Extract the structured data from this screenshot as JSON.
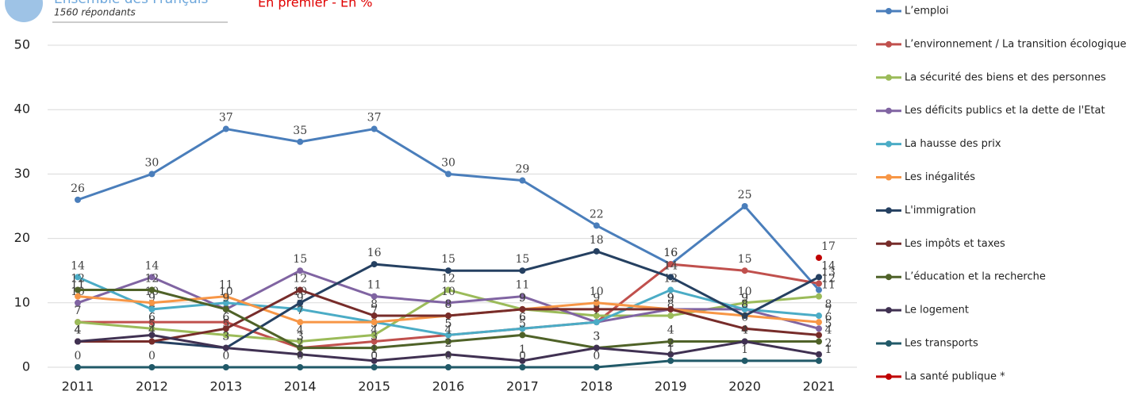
{
  "chart_data": {
    "type": "line",
    "title": "Ensemble des Français",
    "subtitle": "1560 répondants",
    "note": "En premier - En %",
    "categories": [
      "2011",
      "2012",
      "2013",
      "2014",
      "2015",
      "2016",
      "2017",
      "2018",
      "2019",
      "2020",
      "2021"
    ],
    "ylim": [
      0,
      50
    ],
    "yticks": [
      0,
      10,
      20,
      30,
      40,
      50
    ],
    "grid": true,
    "series": [
      {
        "name": "L’emploi",
        "color": "#4a7ebb",
        "values": [
          26,
          30,
          37,
          35,
          37,
          30,
          29,
          22,
          16,
          25,
          12
        ]
      },
      {
        "name": "L’environnement / La transition écologique",
        "color": "#c0504d",
        "values": [
          7,
          7,
          7,
          3,
          4,
          5,
          6,
          7,
          16,
          15,
          13
        ]
      },
      {
        "name": "La sécurité des biens et des personnes",
        "color": "#9bbb59",
        "values": [
          7,
          6,
          5,
          4,
          5,
          12,
          9,
          8,
          8,
          10,
          11
        ]
      },
      {
        "name": "Les déficits publics et la dette de l'Etat",
        "color": "#8064a2",
        "values": [
          10,
          14,
          9,
          15,
          11,
          10,
          11,
          7,
          9,
          9,
          6
        ]
      },
      {
        "name": "La hausse des prix",
        "color": "#4bacc6",
        "values": [
          14,
          9,
          10,
          9,
          7,
          5,
          6,
          7,
          12,
          9,
          8
        ]
      },
      {
        "name": "Les inégalités",
        "color": "#f79646",
        "values": [
          11,
          10,
          11,
          7,
          7,
          8,
          9,
          10,
          9,
          8,
          7
        ]
      },
      {
        "name": "L'immigration",
        "color": "#254061",
        "values": [
          4,
          4,
          3,
          10,
          16,
          15,
          15,
          18,
          14,
          8,
          14
        ]
      },
      {
        "name": "Les impôts et taxes",
        "color": "#772c2a",
        "values": [
          4,
          4,
          6,
          12,
          8,
          8,
          9,
          9,
          9,
          6,
          5
        ]
      },
      {
        "name": "L’éducation et la recherche",
        "color": "#4f6228",
        "values": [
          12,
          12,
          9,
          3,
          3,
          4,
          5,
          3,
          4,
          4,
          4
        ]
      },
      {
        "name": "Le logement",
        "color": "#403152",
        "values": [
          4,
          5,
          3,
          2,
          1,
          2,
          1,
          3,
          2,
          4,
          2
        ]
      },
      {
        "name": "Les transports",
        "color": "#215968",
        "values": [
          0,
          0,
          0,
          0,
          0,
          0,
          0,
          0,
          1,
          1,
          1
        ]
      },
      {
        "name": "La santé publique *",
        "color": "#c00000",
        "values": [
          null,
          null,
          null,
          null,
          null,
          null,
          null,
          null,
          null,
          null,
          17
        ]
      }
    ]
  }
}
